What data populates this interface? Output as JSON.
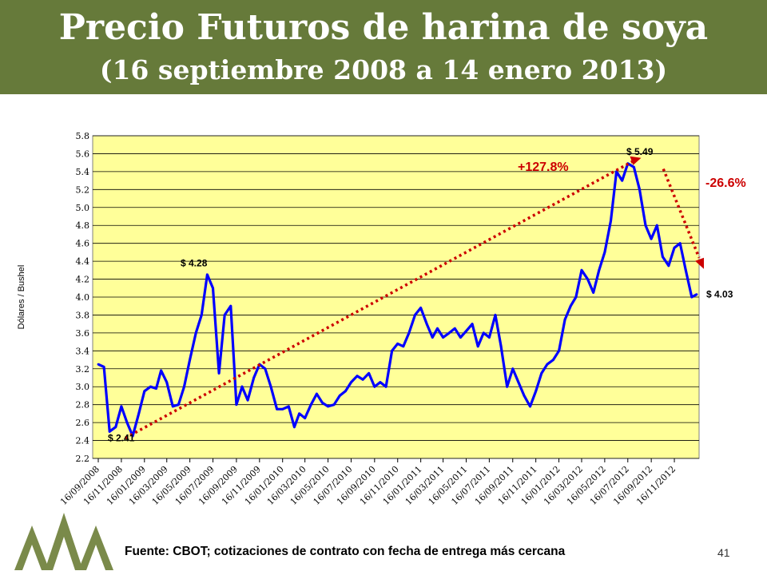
{
  "header": {
    "title": "Precio Futuros de harina de soya",
    "subtitle": "(16 septiembre 2008 a 14 enero 2013)"
  },
  "footer": {
    "source": "Fuente: CBOT; cotizaciones de contrato con fecha de entrega más cercana",
    "page_number": "41"
  },
  "colors": {
    "header_bg": "#667a3a",
    "plot_bg": "#ffff99",
    "series": "#0000ff",
    "trend": "#cc0000",
    "logo": "#7a8a4a"
  },
  "chart_data": {
    "type": "line",
    "title": "",
    "xlabel": "",
    "ylabel": "Dólares / Bushel",
    "ylim": [
      2.2,
      5.8
    ],
    "yticks": [
      "2.2",
      "2.4",
      "2.6",
      "2.8",
      "3.0",
      "3.2",
      "3.4",
      "3.6",
      "3.8",
      "4.0",
      "4.2",
      "4.4",
      "4.6",
      "4.8",
      "5.0",
      "5.2",
      "5.4",
      "5.6",
      "5.8"
    ],
    "grid": true,
    "xtick_labels": [
      "16/09/2008",
      "16/11/2008",
      "16/01/2009",
      "16/03/2009",
      "16/05/2009",
      "16/07/2009",
      "16/09/2009",
      "16/11/2009",
      "16/01/2010",
      "16/03/2010",
      "16/05/2010",
      "16/07/2010",
      "16/09/2010",
      "16/11/2010",
      "16/01/2011",
      "16/03/2011",
      "16/05/2011",
      "16/07/2011",
      "16/09/2011",
      "16/11/2011",
      "16/01/2012",
      "16/03/2012",
      "16/05/2012",
      "16/07/2012",
      "16/09/2012",
      "16/11/2012"
    ],
    "series": [
      {
        "x": [
          "16/09/2008",
          "01/10/2008",
          "16/10/2008",
          "01/11/2008",
          "16/11/2008",
          "01/12/2008",
          "16/12/2008",
          "01/01/2009",
          "16/01/2009",
          "01/02/2009",
          "16/02/2009",
          "01/03/2009",
          "16/03/2009",
          "01/04/2009",
          "16/04/2009",
          "01/05/2009",
          "16/05/2009",
          "01/06/2009",
          "16/06/2009",
          "01/07/2009",
          "16/07/2009",
          "01/08/2009",
          "16/08/2009",
          "01/09/2009",
          "16/09/2009",
          "01/10/2009",
          "16/10/2009",
          "01/11/2009",
          "16/11/2009",
          "01/12/2009",
          "16/12/2009",
          "01/01/2010",
          "16/01/2010",
          "01/02/2010",
          "16/02/2010",
          "01/03/2010",
          "16/03/2010",
          "01/04/2010",
          "16/04/2010",
          "01/05/2010",
          "16/05/2010",
          "01/06/2010",
          "16/06/2010",
          "01/07/2010",
          "16/07/2010",
          "01/08/2010",
          "16/08/2010",
          "01/09/2010",
          "16/09/2010",
          "01/10/2010",
          "16/10/2010",
          "01/11/2010",
          "16/11/2010",
          "01/12/2010",
          "16/12/2010",
          "01/01/2011",
          "16/01/2011",
          "01/02/2011",
          "16/02/2011",
          "01/03/2011",
          "16/03/2011",
          "01/04/2011",
          "16/04/2011",
          "01/05/2011",
          "16/05/2011",
          "01/06/2011",
          "16/06/2011",
          "01/07/2011",
          "16/07/2011",
          "01/08/2011",
          "16/08/2011",
          "01/09/2011",
          "16/09/2011",
          "01/10/2011",
          "16/10/2011",
          "01/11/2011",
          "16/11/2011",
          "01/12/2011",
          "16/12/2011",
          "01/01/2012",
          "16/01/2012",
          "01/02/2012",
          "16/02/2012",
          "01/03/2012",
          "16/03/2012",
          "01/04/2012",
          "16/04/2012",
          "01/05/2012",
          "16/05/2012",
          "01/06/2012",
          "16/06/2012",
          "01/07/2012",
          "16/07/2012",
          "01/08/2012",
          "16/08/2012",
          "01/09/2012",
          "16/09/2012",
          "01/10/2012",
          "16/10/2012",
          "01/11/2012",
          "16/11/2012",
          "01/12/2012",
          "16/12/2012",
          "01/01/2013",
          "14/01/2013"
        ],
        "values": [
          3.25,
          3.22,
          2.5,
          2.55,
          2.78,
          2.6,
          2.45,
          2.7,
          2.95,
          3.0,
          2.98,
          3.18,
          3.05,
          2.78,
          2.8,
          3.0,
          3.3,
          3.6,
          3.8,
          4.25,
          4.1,
          3.15,
          3.8,
          3.9,
          2.8,
          3.0,
          2.85,
          3.1,
          3.25,
          3.2,
          3.0,
          2.75,
          2.75,
          2.78,
          2.55,
          2.7,
          2.65,
          2.8,
          2.92,
          2.82,
          2.78,
          2.8,
          2.9,
          2.95,
          3.05,
          3.12,
          3.08,
          3.15,
          3.0,
          3.05,
          3.0,
          3.4,
          3.48,
          3.45,
          3.6,
          3.8,
          3.88,
          3.7,
          3.55,
          3.65,
          3.55,
          3.6,
          3.65,
          3.55,
          3.62,
          3.7,
          3.45,
          3.6,
          3.55,
          3.8,
          3.45,
          3.0,
          3.2,
          3.05,
          2.9,
          2.78,
          2.95,
          3.15,
          3.25,
          3.3,
          3.4,
          3.75,
          3.9,
          4.0,
          4.3,
          4.2,
          4.05,
          4.3,
          4.5,
          4.85,
          5.4,
          5.3,
          5.49,
          5.45,
          5.2,
          4.8,
          4.65,
          4.8,
          4.45,
          4.35,
          4.55,
          4.6,
          4.3,
          4.0,
          4.03
        ]
      }
    ],
    "annotations": {
      "start_value": "$ 2.41",
      "peak_2009": "$ 4.28",
      "peak_2012": "$ 5.49",
      "end_value": "$ 4.03",
      "increase": "+127.8%",
      "decrease": "-26.6%"
    }
  }
}
